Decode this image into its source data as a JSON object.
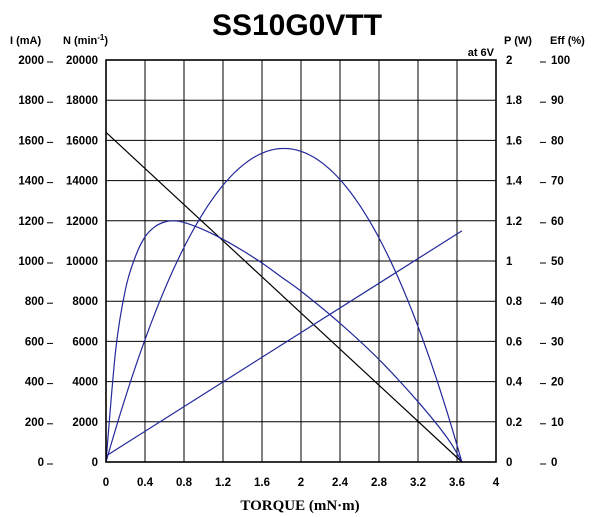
{
  "chart_data": {
    "type": "line",
    "title": "SS10G0VTT",
    "subtitle": "at 6V",
    "xlabel": "TORQUE (mN·m)",
    "xlim": [
      0,
      4
    ],
    "x_ticks": [
      "0",
      "0.4",
      "0.8",
      "1.2",
      "1.6",
      "2",
      "2.4",
      "2.8",
      "3.2",
      "3.6",
      "4"
    ],
    "axes": [
      {
        "id": "current",
        "label": "I (mA)",
        "side": "left",
        "ylim": [
          0,
          2000
        ],
        "ticks": [
          "0",
          "200",
          "400",
          "600",
          "800",
          "1000",
          "1200",
          "1400",
          "1600",
          "1800",
          "2000"
        ]
      },
      {
        "id": "speed",
        "label": "N (min",
        "label_sup": "-1",
        "label_end": ")",
        "side": "left",
        "ylim": [
          0,
          20000
        ],
        "ticks": [
          "0",
          "2000",
          "4000",
          "6000",
          "8000",
          "10000",
          "12000",
          "14000",
          "16000",
          "18000",
          "20000"
        ]
      },
      {
        "id": "power",
        "label": "P (W)",
        "side": "right",
        "ylim": [
          0,
          2
        ],
        "ticks": [
          "0",
          "0.2",
          "0.4",
          "0.6",
          "0.8",
          "1",
          "1.2",
          "1.4",
          "1.6",
          "1.8",
          "2"
        ]
      },
      {
        "id": "efficiency",
        "label": "Eff (%)",
        "side": "right",
        "ylim": [
          0,
          100
        ],
        "ticks": [
          "0",
          "10",
          "20",
          "30",
          "40",
          "50",
          "60",
          "70",
          "80",
          "90",
          "100"
        ]
      }
    ],
    "series": [
      {
        "axis": "speed",
        "color": "#000000",
        "shape": "linear",
        "x": [
          0,
          3.65
        ],
        "y": [
          16400,
          0
        ]
      },
      {
        "axis": "current",
        "color": "#23299a",
        "shape": "linear",
        "x": [
          0,
          3.65
        ],
        "y": [
          30,
          1150
        ]
      },
      {
        "axis": "power",
        "color": "#23299a",
        "shape": "parabola",
        "x": [
          0,
          1.84,
          3.65
        ],
        "y": [
          0,
          1.56,
          0
        ]
      },
      {
        "axis": "efficiency",
        "color": "#23299a",
        "shape": "curve",
        "x": [
          0,
          0.1,
          0.2,
          0.3,
          0.4,
          0.5,
          0.6,
          0.7,
          0.8,
          1.0,
          1.2,
          1.4,
          1.6,
          1.8,
          2.0,
          2.4,
          2.8,
          3.2,
          3.5,
          3.65
        ],
        "y": [
          0,
          28,
          43,
          51,
          56,
          58.5,
          59.7,
          60,
          59.6,
          57.8,
          55.4,
          52.6,
          49.5,
          46,
          42.5,
          34.5,
          25.5,
          15,
          6,
          0
        ]
      }
    ]
  }
}
